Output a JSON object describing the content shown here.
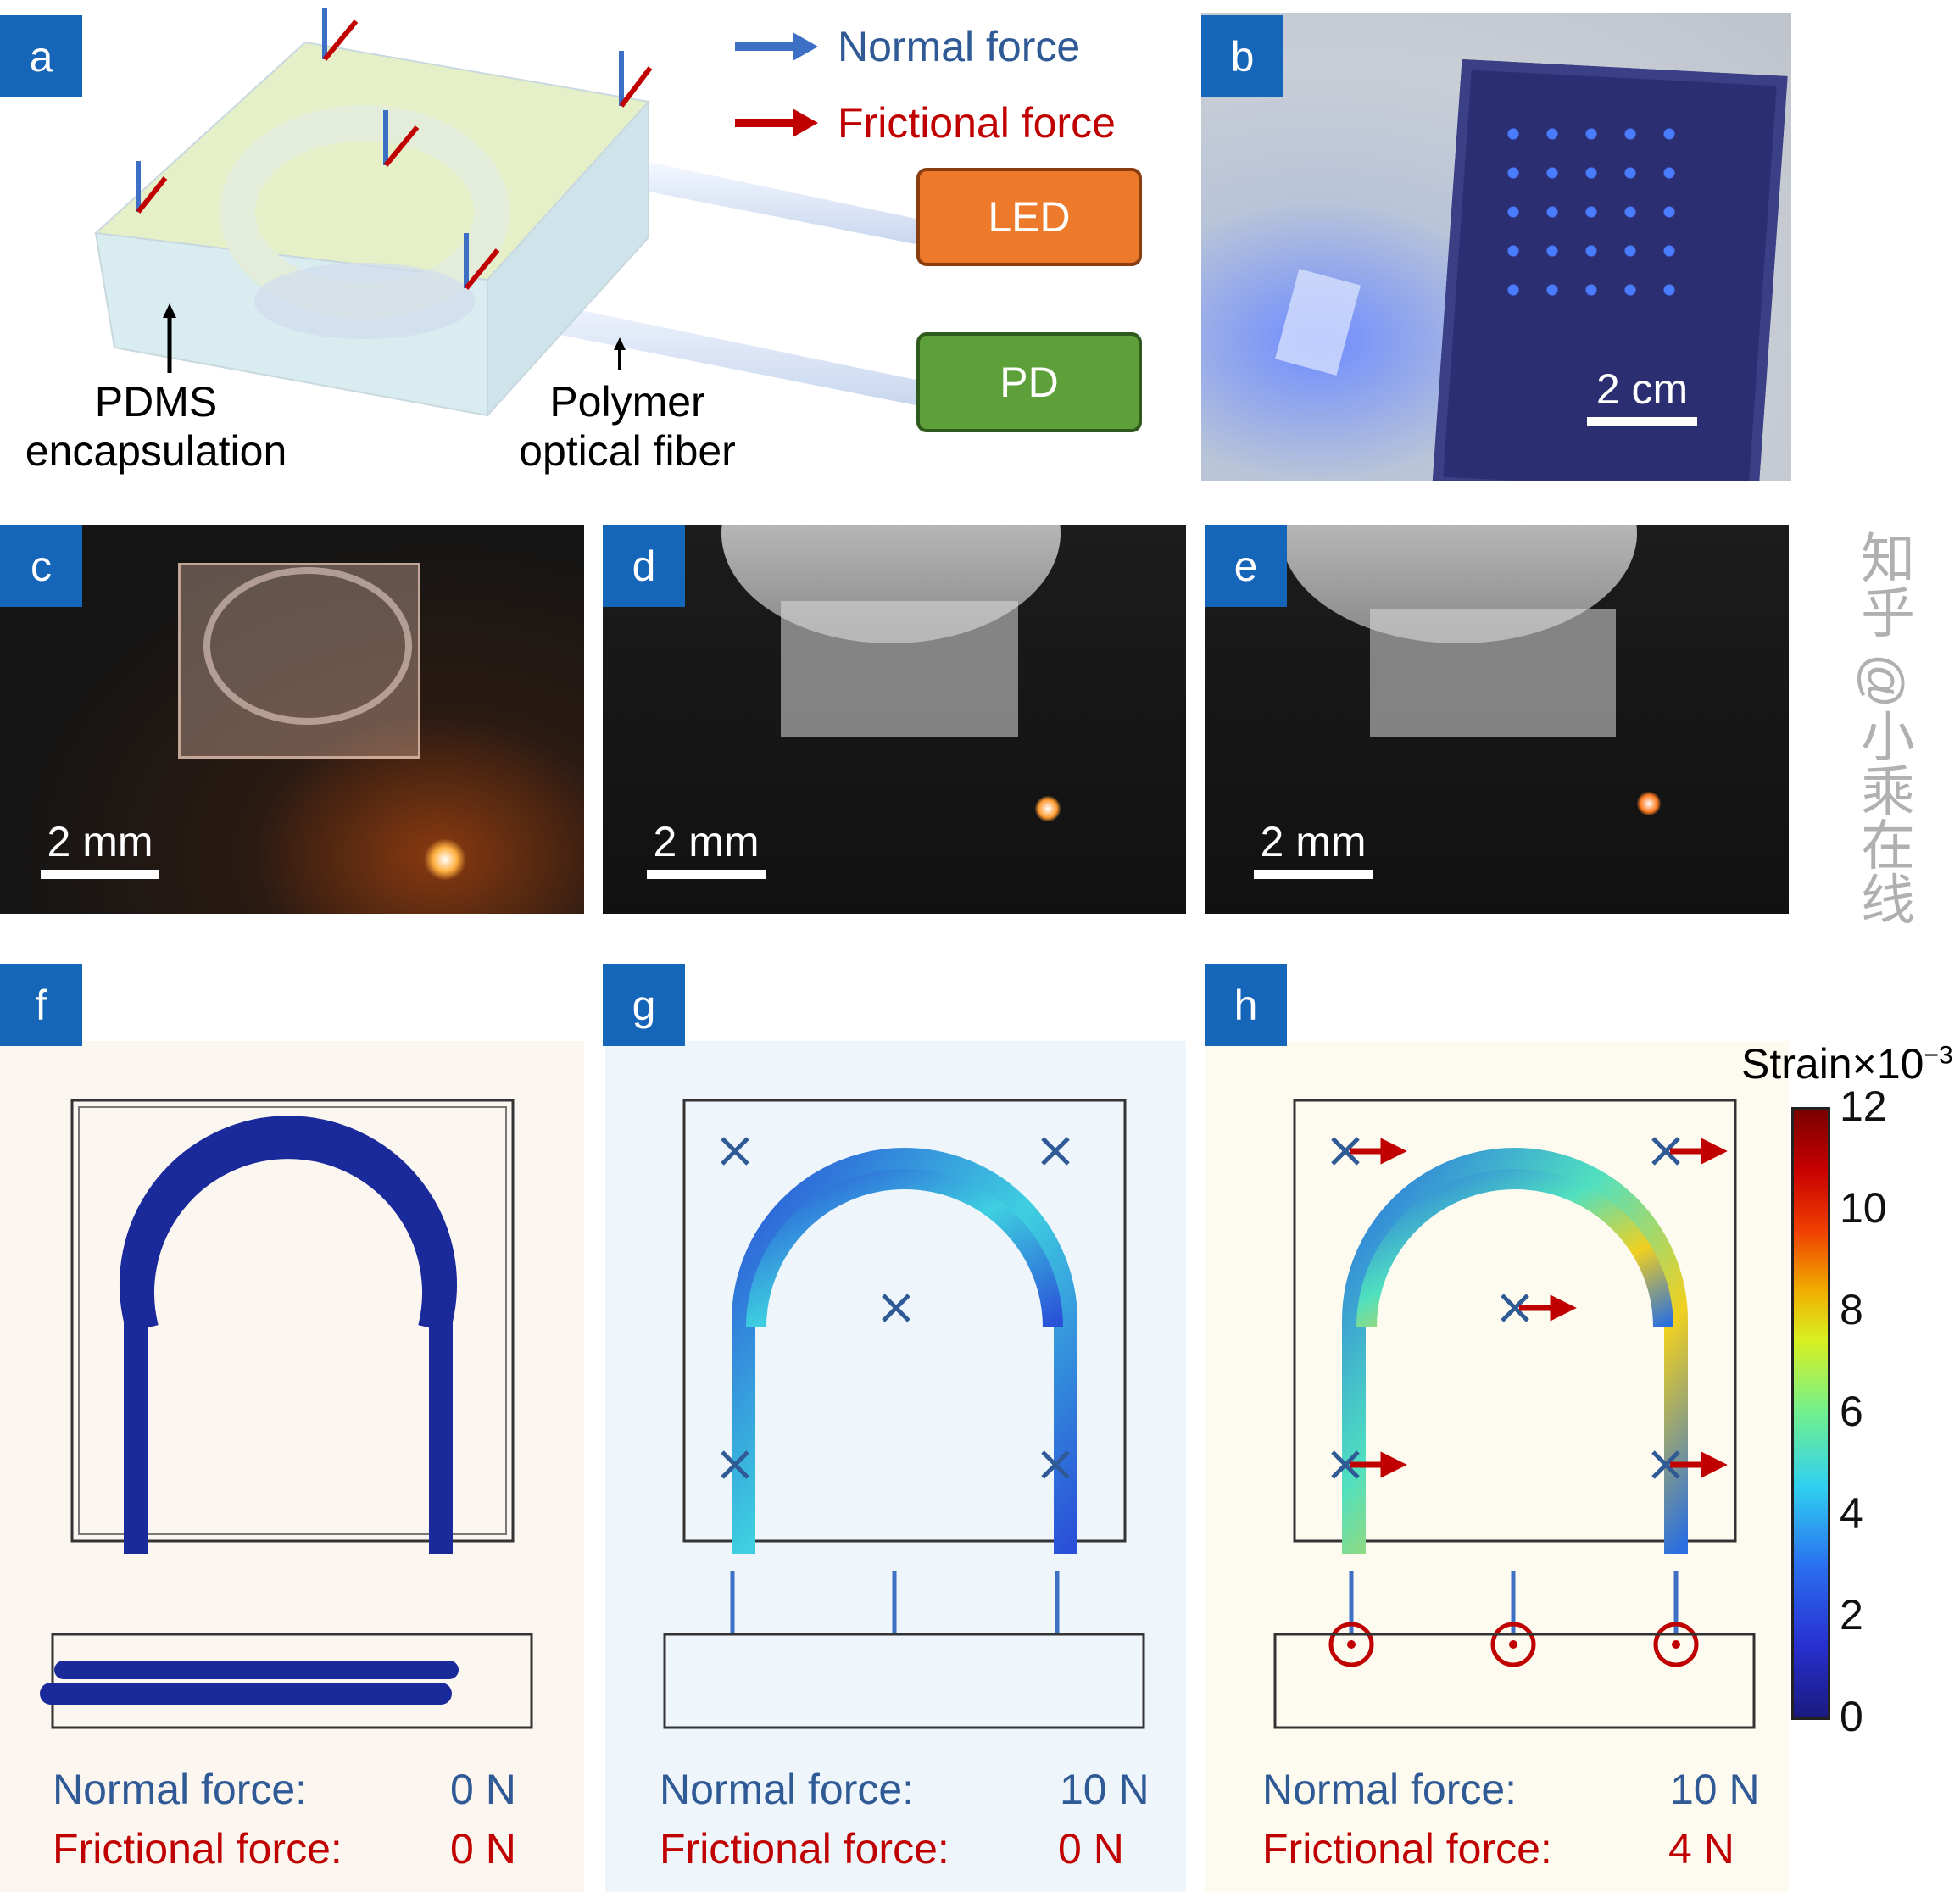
{
  "panels": {
    "a": "a",
    "b": "b",
    "c": "c",
    "d": "d",
    "e": "e",
    "f": "f",
    "g": "g",
    "h": "h"
  },
  "legend": {
    "normal": "Normal force",
    "frictional": "Frictional force",
    "normal_color": "#3d6fc4",
    "frictional_color": "#c00000"
  },
  "devices": {
    "led": "LED",
    "pd": "PD",
    "led_color": "#ec7a2a",
    "pd_color": "#5da03a"
  },
  "annotations": {
    "pdms_1": "PDMS",
    "pdms_2": "encapsulation",
    "fiber_1": "Polymer",
    "fiber_2": "optical fiber"
  },
  "scale_bars": {
    "b": "2 cm",
    "c": "2 mm",
    "d": "2 mm",
    "e": "2 mm"
  },
  "forces": [
    {
      "normal_label": "Normal force:",
      "normal_value": "0 N",
      "friction_label": "Frictional force:",
      "friction_value": "0 N"
    },
    {
      "normal_label": "Normal force:",
      "normal_value": "10 N",
      "friction_label": "Frictional force:",
      "friction_value": "0 N"
    },
    {
      "normal_label": "Normal force:",
      "normal_value": "10 N",
      "friction_label": "Frictional force:",
      "friction_value": "4 N"
    }
  ],
  "colorbar": {
    "title": "Strain×10",
    "exponent": "−3",
    "ticks": [
      "12",
      "10",
      "8",
      "6",
      "4",
      "2",
      "0"
    ],
    "range": [
      0,
      12
    ],
    "colormap": "jet"
  },
  "watermark": "知乎 @小乘在线"
}
